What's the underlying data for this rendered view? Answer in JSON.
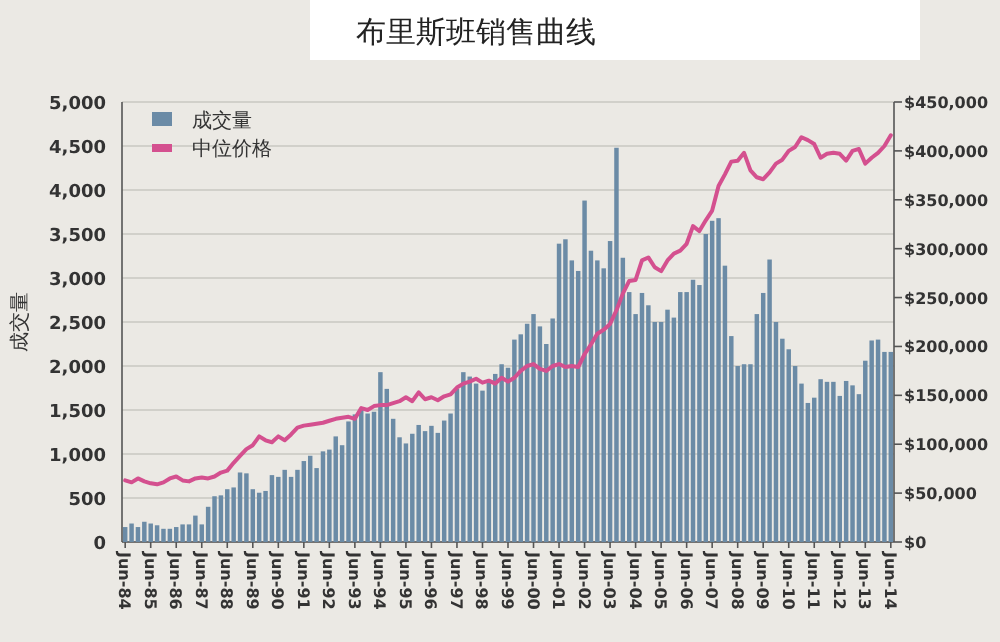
{
  "chart_data": {
    "type": "bar",
    "title": "布里斯班销售曲线",
    "ylabel": "成交量",
    "categories": [
      "Jun-84",
      null,
      null,
      null,
      "Jun-85",
      null,
      null,
      null,
      "Jun-86",
      null,
      null,
      null,
      "Jun-87",
      null,
      null,
      null,
      "Jun-88",
      null,
      null,
      null,
      "Jun-89",
      null,
      null,
      null,
      "Jun-90",
      null,
      null,
      null,
      "Jun-91",
      null,
      null,
      null,
      "Jun-92",
      null,
      null,
      null,
      "Jun-93",
      null,
      null,
      null,
      "Jun-94",
      null,
      null,
      null,
      "Jun-95",
      null,
      null,
      null,
      "Jun-96",
      null,
      null,
      null,
      "Jun-97",
      null,
      null,
      null,
      "Jun-98",
      null,
      null,
      null,
      "Jun-99",
      null,
      null,
      null,
      "Jun-00",
      null,
      null,
      null,
      "Jun-01",
      null,
      null,
      null,
      "Jun-02",
      null,
      null,
      null,
      "Jun-03",
      null,
      null,
      null,
      "Jun-04",
      null,
      null,
      null,
      "Jun-05",
      null,
      null,
      null,
      "Jun-06",
      null,
      null,
      null,
      "Jun-07",
      null,
      null,
      null,
      "Jun-08",
      null,
      null,
      null,
      "Jun-09",
      null,
      null,
      null,
      "Jun-10",
      null,
      null,
      null,
      "Jun-11",
      null,
      null,
      null,
      "Jun-12",
      null,
      null,
      null,
      "Jun-13",
      null,
      null,
      null,
      "Jun-14"
    ],
    "series": [
      {
        "name": "成交量",
        "color": "#6b8ba6",
        "values": [
          170,
          210,
          170,
          230,
          210,
          190,
          150,
          150,
          170,
          200,
          200,
          300,
          200,
          400,
          520,
          530,
          600,
          620,
          790,
          780,
          600,
          560,
          580,
          760,
          740,
          820,
          740,
          820,
          920,
          980,
          840,
          1030,
          1050,
          1200,
          1100,
          1370,
          1450,
          1500,
          1460,
          1480,
          1930,
          1740,
          1400,
          1190,
          1120,
          1230,
          1330,
          1260,
          1320,
          1240,
          1380,
          1460,
          1740,
          1930,
          1880,
          1800,
          1720,
          1820,
          1910,
          2020,
          1980,
          2300,
          2360,
          2480,
          2590,
          2450,
          2250,
          2540,
          3390,
          3440,
          3200,
          3080,
          3880,
          3310,
          3200,
          3110,
          3420,
          4480,
          3230,
          2840,
          2590,
          2830,
          2690,
          2500,
          2500,
          2640,
          2550,
          2840,
          2840,
          2980,
          2920,
          3500,
          3650,
          3680,
          3140,
          2340,
          2000,
          2020,
          2020,
          2590,
          2830,
          3210,
          2500,
          2310,
          2190,
          2000,
          1800,
          1580,
          1640,
          1850,
          1820,
          1820,
          1660,
          1830,
          1780,
          1680,
          2060,
          2290,
          2300,
          2160,
          2160
        ]
      },
      {
        "name": "中位价格",
        "type": "line",
        "axis": "y2",
        "color": "#d4508f",
        "values": [
          63000,
          61000,
          65000,
          62000,
          60000,
          59000,
          61000,
          65000,
          67000,
          63000,
          62000,
          65000,
          66000,
          65000,
          67000,
          71000,
          73000,
          81000,
          88000,
          95000,
          99000,
          108000,
          104000,
          102000,
          108000,
          104000,
          110000,
          117000,
          119000,
          120000,
          121000,
          122000,
          124000,
          126000,
          127000,
          128000,
          126000,
          137000,
          135000,
          139000,
          140000,
          140000,
          142000,
          144000,
          148000,
          144000,
          153000,
          146000,
          148000,
          145000,
          149000,
          151000,
          158000,
          162000,
          164000,
          167000,
          163000,
          165000,
          162000,
          168000,
          164000,
          168000,
          175000,
          180000,
          182000,
          177000,
          175000,
          180000,
          182000,
          179000,
          180000,
          179000,
          192000,
          202000,
          213000,
          217000,
          223000,
          237000,
          254000,
          267000,
          268000,
          288000,
          291000,
          281000,
          277000,
          288000,
          295000,
          298000,
          305000,
          323000,
          318000,
          329000,
          339000,
          364000,
          376000,
          389000,
          390000,
          398000,
          380000,
          373000,
          371000,
          378000,
          387000,
          391000,
          400000,
          404000,
          414000,
          411000,
          407000,
          393000,
          397000,
          398000,
          397000,
          390000,
          400000,
          402000,
          387000,
          393000,
          398000,
          405000,
          416000
        ]
      }
    ],
    "ylim": [
      0,
      5000
    ],
    "yticks": [
      0,
      {
        "value": 500,
        "label": "500"
      },
      {
        "value": 1000,
        "label": "1,000"
      },
      {
        "value": 1500,
        "label": "1,500"
      },
      {
        "value": 2000,
        "label": "2,000"
      },
      {
        "value": 2500,
        "label": "2,500"
      },
      {
        "value": 3000,
        "label": "3,000"
      },
      {
        "value": 3500,
        "label": "3,500"
      },
      {
        "value": 4000,
        "label": "4,000"
      },
      {
        "value": 4500,
        "label": "4,500"
      },
      {
        "value": 5000,
        "label": "5,000"
      }
    ],
    "y2lim": [
      0,
      450000
    ],
    "y2ticks": [
      {
        "value": 0,
        "label": "$0"
      },
      {
        "value": 50000,
        "label": "$50,000"
      },
      {
        "value": 100000,
        "label": "$100,000"
      },
      {
        "value": 150000,
        "label": "$150,000"
      },
      {
        "value": 200000,
        "label": "$200,000"
      },
      {
        "value": 250000,
        "label": "$250,000"
      },
      {
        "value": 300000,
        "label": "$300,000"
      },
      {
        "value": 350000,
        "label": "$350,000"
      },
      {
        "value": 400000,
        "label": "$400,000"
      },
      {
        "value": 450000,
        "label": "$450,000"
      }
    ],
    "grid": "y",
    "legend": "top left"
  }
}
